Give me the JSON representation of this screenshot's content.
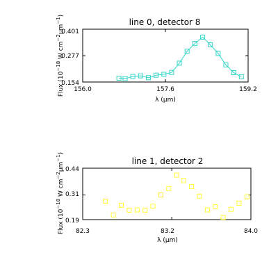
{
  "chart_data": [
    {
      "type": "line",
      "title": "line 0, detector 8",
      "xlabel": "λ (μm)",
      "ylabel_main": "Flux (10",
      "ylabel_sup1": "−18",
      "ylabel_mid": " W cm",
      "ylabel_sup2": "−2",
      "ylabel_mu": "μm",
      "ylabel_sup3": "−1",
      "ylabel_end": ")",
      "xlim": [
        156.0,
        159.2
      ],
      "ylim": [
        0.154,
        0.401
      ],
      "xticks": [
        "156.0",
        "157.6",
        "159.2"
      ],
      "yticks": [
        "0.154",
        "0.277",
        "0.401"
      ],
      "marker": "square",
      "connected": true,
      "color": "#33d6c6",
      "series": [
        {
          "x": [
            156.7,
            156.82,
            156.97,
            157.12,
            157.27,
            157.42,
            157.57,
            157.72,
            157.87,
            158.02,
            158.17,
            158.32,
            158.47,
            158.62,
            158.77,
            158.92,
            159.07
          ],
          "y": [
            0.172,
            0.17,
            0.18,
            0.183,
            0.174,
            0.186,
            0.19,
            0.199,
            0.242,
            0.298,
            0.334,
            0.364,
            0.328,
            0.288,
            0.234,
            0.198,
            0.178
          ]
        }
      ]
    },
    {
      "type": "scatter",
      "title": "line 1, detector 2",
      "xlabel": "λ (μm)",
      "ylabel_main": "Flux (10",
      "ylabel_sup1": "−18",
      "ylabel_mid": " W cm",
      "ylabel_sup2": "−2",
      "ylabel_mu": "μm",
      "ylabel_sup3": "−1",
      "ylabel_end": ")",
      "xlim": [
        82.3,
        84.0
      ],
      "ylim": [
        0.19,
        0.44
      ],
      "xticks": [
        "82.3",
        "83.2",
        "84.0"
      ],
      "yticks": [
        "0.19",
        "0.31",
        "0.44"
      ],
      "marker": "square",
      "connected": false,
      "color": "#ffff33",
      "series": [
        {
          "x": [
            82.53,
            82.61,
            82.69,
            82.77,
            82.85,
            82.93,
            83.01,
            83.09,
            83.17,
            83.25,
            83.32,
            83.4,
            83.48,
            83.56,
            83.64,
            83.72,
            83.8,
            83.88,
            83.96
          ],
          "y": [
            0.28,
            0.213,
            0.26,
            0.236,
            0.237,
            0.236,
            0.256,
            0.31,
            0.341,
            0.406,
            0.38,
            0.35,
            0.304,
            0.237,
            0.253,
            0.201,
            0.24,
            0.27,
            0.301
          ]
        }
      ]
    }
  ]
}
